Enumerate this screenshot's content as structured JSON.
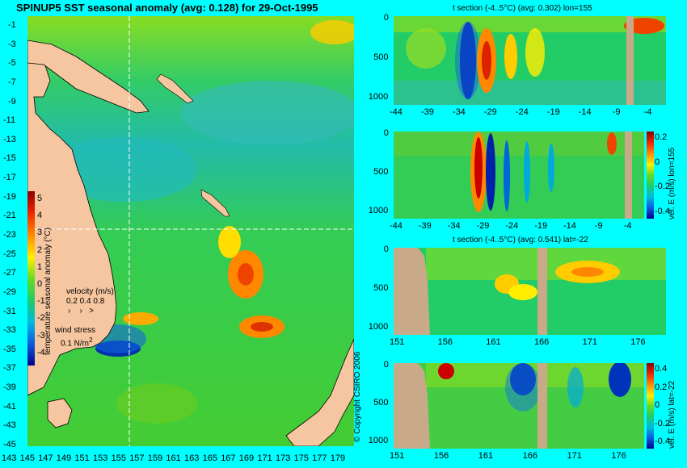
{
  "map": {
    "title": "SPINUP5 SST seasonal anomaly (avg: 0.128) for 29-Oct-1995",
    "colorbar_label": "temperature seasonal anomaly (°C)",
    "colorbar_ticks": [
      "5",
      "4",
      "3",
      "2",
      "1",
      "0",
      "-1",
      "-2",
      "-3",
      "-4"
    ],
    "lat_ticks": [
      "-1",
      "-3",
      "-5",
      "-7",
      "-9",
      "-11",
      "-13",
      "-15",
      "-17",
      "-19",
      "-21",
      "-23",
      "-25",
      "-27",
      "-29",
      "-31",
      "-33",
      "-35",
      "-37",
      "-39",
      "-41",
      "-43",
      "-45"
    ],
    "lon_ticks": [
      "143",
      "145",
      "147",
      "149",
      "151",
      "153",
      "155",
      "157",
      "159",
      "161",
      "163",
      "165",
      "167",
      "169",
      "171",
      "173",
      "175",
      "177",
      "179"
    ],
    "velocity_label": "velocity (m/s)",
    "velocity_scale": "0.2 0.4 0.8",
    "wind_label": "wind stress",
    "wind_scale": "0.1 N/m",
    "wind_scale_exp": "2",
    "copyright": "© Copyright CSIRO 2006"
  },
  "chart_data": [
    {
      "type": "heatmap",
      "title": "SPINUP5 SST seasonal anomaly (avg: 0.128) for 29-Oct-1995",
      "xlabel": "",
      "ylabel": "",
      "x_ticks": [
        143,
        145,
        147,
        149,
        151,
        153,
        155,
        157,
        159,
        161,
        163,
        165,
        167,
        169,
        171,
        173,
        175,
        177,
        179
      ],
      "y_ticks": [
        -1,
        -3,
        -5,
        -7,
        -9,
        -11,
        -13,
        -15,
        -17,
        -19,
        -21,
        -23,
        -25,
        -27,
        -29,
        -31,
        -33,
        -35,
        -37,
        -39,
        -41,
        -43,
        -45
      ],
      "xlim": [
        143,
        180
      ],
      "ylim": [
        -45,
        0
      ],
      "colorbar": {
        "label": "temperature seasonal anomaly (°C)",
        "range": [
          -4,
          5
        ]
      },
      "section_lines": {
        "lon": 155,
        "lat": -22
      }
    },
    {
      "type": "heatmap",
      "title": "t section (-4..5°C) (avg: 0.302) lon=155",
      "x_ticks": [
        -44,
        -39,
        -34,
        -29,
        -24,
        -19,
        -14,
        -9,
        -4
      ],
      "y_ticks": [
        0,
        500,
        1000
      ],
      "xlim": [
        -46,
        0
      ],
      "ylim": [
        1050,
        0
      ]
    },
    {
      "type": "heatmap",
      "title": "",
      "x_ticks": [
        -44,
        -39,
        -34,
        -29,
        -24,
        -19,
        -14,
        -9,
        -4
      ],
      "y_ticks": [
        0,
        500,
        1000
      ],
      "xlim": [
        -46,
        0
      ],
      "ylim": [
        1050,
        0
      ],
      "colorbar": {
        "label": "vel. E (m/s) lon=155",
        "ticks": [
          0.2,
          0,
          -0.2,
          -0.4
        ]
      }
    },
    {
      "type": "heatmap",
      "title": "t section (-4..5°C) (avg: 0.541) lat=-22",
      "x_ticks": [
        151,
        156,
        161,
        166,
        171,
        176
      ],
      "y_ticks": [
        0,
        500,
        1000
      ],
      "xlim": [
        150,
        180
      ],
      "ylim": [
        1050,
        0
      ]
    },
    {
      "type": "heatmap",
      "title": "",
      "x_ticks": [
        151,
        156,
        161,
        166,
        171,
        176
      ],
      "y_ticks": [
        0,
        500,
        1000
      ],
      "xlim": [
        150,
        180
      ],
      "ylim": [
        1050,
        0
      ],
      "colorbar": {
        "label": "vel. E (m/s) lat=-22",
        "ticks": [
          0.4,
          0.2,
          0,
          -0.2,
          -0.4
        ]
      }
    }
  ],
  "panels": {
    "p1": {
      "title": "t section (-4..5°C) (avg: 0.302) lon=155",
      "xticks": [
        "-44",
        "-39",
        "-34",
        "-29",
        "-24",
        "-19",
        "-14",
        "-9",
        "-4"
      ],
      "yticks": [
        "0",
        "500",
        "1000"
      ]
    },
    "p2": {
      "xticks": [
        "-44",
        "-39",
        "-34",
        "-29",
        "-24",
        "-19",
        "-14",
        "-9",
        "-4"
      ],
      "yticks": [
        "0",
        "500",
        "1000"
      ],
      "cbar_label": "vel. E (m/s) lon=155",
      "cbar_ticks": [
        "0.2",
        "0",
        "-0.2",
        "-0.4"
      ]
    },
    "p3": {
      "title": "t section (-4..5°C) (avg: 0.541) lat=-22",
      "xticks": [
        "151",
        "156",
        "161",
        "166",
        "171",
        "176"
      ],
      "yticks": [
        "0",
        "500",
        "1000"
      ]
    },
    "p4": {
      "xticks": [
        "151",
        "156",
        "161",
        "166",
        "171",
        "176"
      ],
      "yticks": [
        "0",
        "500",
        "1000"
      ],
      "cbar_label": "vel. E (m/s) lat=-22",
      "cbar_ticks": [
        "0.4",
        "0.2",
        "0",
        "-0.2",
        "-0.4"
      ]
    }
  },
  "colors": {
    "background": "#00ffff",
    "land": "#f5c6a0",
    "ocean_mid": "#22cc44",
    "warm": "#ff6600",
    "cold": "#0022aa"
  }
}
